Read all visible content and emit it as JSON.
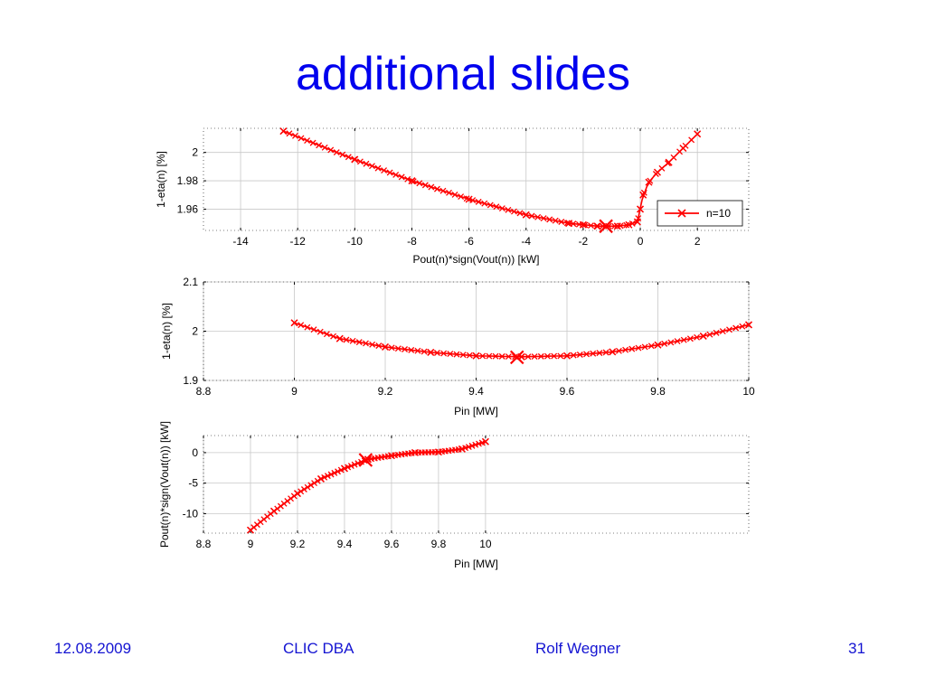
{
  "slide": {
    "title": "additional slides"
  },
  "footer": {
    "date": "12.08.2009",
    "event": "CLIC DBA",
    "author": "Rolf Wegner",
    "page": "31"
  },
  "colors": {
    "title": "#0000ee",
    "footer": "#1414d2",
    "series": "#ff0000"
  },
  "chart_data": [
    {
      "type": "line",
      "xlabel": "Pout(n)*sign(Vout(n)) [kW]",
      "ylabel": "1-eta(n) [%]",
      "xlim": [
        -15.3,
        3.8
      ],
      "ylim": [
        1.945,
        2.017
      ],
      "xticks": [
        -14,
        -12,
        -10,
        -8,
        -6,
        -4,
        -2,
        0,
        2
      ],
      "xtick_labels": [
        "-14",
        "-12",
        "-10",
        "-8",
        "-6",
        "-4",
        "-2",
        "0",
        "2"
      ],
      "yticks": [
        1.96,
        1.98,
        2
      ],
      "ytick_labels": [
        "1.96",
        "1.98",
        "2"
      ],
      "grid": true,
      "legend": {
        "position": "right",
        "entries": [
          "n=10"
        ]
      },
      "series": [
        {
          "name": "n=10",
          "marker": "x",
          "x": [
            -12.5,
            -10,
            -8,
            -6,
            -4,
            -2.5,
            -2,
            -1.5,
            -1.2,
            -0.8,
            -0.4,
            -0.1,
            0,
            0.1,
            0.3,
            0.6,
            1,
            1.5,
            2
          ],
          "y": [
            2.015,
            1.995,
            1.98,
            1.967,
            1.956,
            1.95,
            1.949,
            1.948,
            1.948,
            1.948,
            1.949,
            1.951,
            1.96,
            1.97,
            1.979,
            1.986,
            1.993,
            2.003,
            2.013
          ]
        }
      ],
      "highlight": {
        "x": -1.2,
        "y": 1.948
      }
    },
    {
      "type": "line",
      "xlabel": "Pin [MW]",
      "ylabel": "1-eta(n) [%]",
      "xlim": [
        8.8,
        10
      ],
      "ylim": [
        1.9,
        2.1
      ],
      "xticks": [
        8.8,
        9,
        9.2,
        9.4,
        9.6,
        9.8,
        10
      ],
      "xtick_labels": [
        "8.8",
        "9",
        "9.2",
        "9.4",
        "9.6",
        "9.8",
        "10"
      ],
      "yticks": [
        1.9,
        2,
        2.1
      ],
      "ytick_labels": [
        "1.9",
        "2",
        "2.1"
      ],
      "grid": true,
      "series": [
        {
          "marker": "x",
          "x": [
            9.0,
            9.1,
            9.2,
            9.3,
            9.4,
            9.5,
            9.6,
            9.7,
            9.8,
            9.9,
            10.0
          ],
          "y": [
            2.017,
            1.985,
            1.968,
            1.957,
            1.95,
            1.948,
            1.95,
            1.958,
            1.972,
            1.99,
            2.013
          ]
        }
      ],
      "highlight": {
        "x": 9.49,
        "y": 1.947
      }
    },
    {
      "type": "line",
      "xlabel": "Pin [MW]",
      "ylabel": "Pout(n)*sign(Vout(n)) [kW]",
      "xlim": [
        8.8,
        11.12
      ],
      "ylim": [
        -13.2,
        2.8
      ],
      "xticks": [
        8.8,
        9,
        9.2,
        9.4,
        9.6,
        9.8,
        10
      ],
      "xtick_labels": [
        "8.8",
        "9",
        "9.2",
        "9.4",
        "9.6",
        "9.8",
        "10"
      ],
      "yticks": [
        -10,
        -5,
        0
      ],
      "ytick_labels": [
        "-10",
        "-5",
        "0"
      ],
      "grid": true,
      "series": [
        {
          "marker": "x",
          "x": [
            9.0,
            9.1,
            9.2,
            9.3,
            9.4,
            9.5,
            9.6,
            9.7,
            9.8,
            9.9,
            10.0
          ],
          "y": [
            -12.7,
            -9.6,
            -6.7,
            -4.3,
            -2.6,
            -1.1,
            -0.5,
            0.0,
            0.1,
            0.6,
            1.8
          ]
        }
      ],
      "highlight": {
        "x": 9.49,
        "y": -1.2
      }
    }
  ]
}
